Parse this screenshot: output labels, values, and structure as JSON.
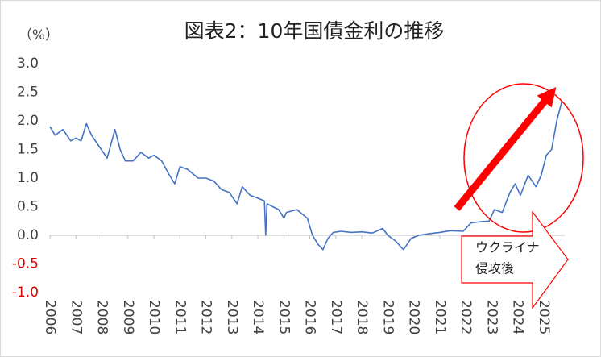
{
  "chart_data": {
    "type": "line",
    "title": "図表2：10年国債金利の推移",
    "y_unit": "（%）",
    "annotation": [
      "ウクライナ",
      "侵攻後"
    ],
    "xlim": [
      2006,
      2025.8
    ],
    "xticks": [
      2006,
      2007,
      2008,
      2009,
      2010,
      2011,
      2012,
      2013,
      2014,
      2015,
      2016,
      2017,
      2018,
      2019,
      2020,
      2021,
      2022,
      2023,
      2024,
      2025
    ],
    "ylim": [
      -1.0,
      3.0
    ],
    "yticks": [
      {
        "value": -1.0,
        "label": "-1.0"
      },
      {
        "value": -0.5,
        "label": "-0.5"
      },
      {
        "value": 0.0,
        "label": "0.0"
      },
      {
        "value": 0.5,
        "label": "0.5"
      },
      {
        "value": 1.0,
        "label": "1.0"
      },
      {
        "value": 1.5,
        "label": "1.5"
      },
      {
        "value": 2.0,
        "label": "2.0"
      },
      {
        "value": 2.5,
        "label": "2.5"
      },
      {
        "value": 3.0,
        "label": "3.0"
      }
    ],
    "negative_tick_color": "#e00000",
    "grid": false,
    "series": [
      {
        "color": "#4472c4",
        "x": [
          2006.0,
          2006.2,
          2006.5,
          2006.8,
          2007.0,
          2007.2,
          2007.4,
          2007.6,
          2007.9,
          2008.2,
          2008.5,
          2008.7,
          2008.9,
          2009.2,
          2009.5,
          2009.8,
          2010.0,
          2010.3,
          2010.6,
          2010.8,
          2011.0,
          2011.3,
          2011.7,
          2012.0,
          2012.3,
          2012.6,
          2012.9,
          2013.2,
          2013.4,
          2013.7,
          2014.0,
          2014.25,
          2014.3,
          2014.35,
          2014.8,
          2015.0,
          2015.1,
          2015.5,
          2015.9,
          2016.1,
          2016.3,
          2016.5,
          2016.7,
          2016.9,
          2017.2,
          2017.6,
          2018.0,
          2018.4,
          2018.8,
          2019.0,
          2019.3,
          2019.6,
          2019.9,
          2020.2,
          2020.6,
          2021.0,
          2021.4,
          2021.9,
          2022.2,
          2022.6,
          2022.9,
          2023.1,
          2023.4,
          2023.7,
          2023.9,
          2024.1,
          2024.4,
          2024.7,
          2024.9,
          2025.1,
          2025.3,
          2025.5,
          2025.7
        ],
        "values": [
          1.9,
          1.75,
          1.85,
          1.65,
          1.7,
          1.65,
          1.95,
          1.75,
          1.55,
          1.35,
          1.85,
          1.5,
          1.3,
          1.3,
          1.45,
          1.35,
          1.4,
          1.3,
          1.05,
          0.9,
          1.2,
          1.15,
          1.0,
          1.0,
          0.95,
          0.8,
          0.75,
          0.55,
          0.85,
          0.7,
          0.65,
          0.6,
          0.0,
          0.55,
          0.45,
          0.3,
          0.4,
          0.45,
          0.3,
          0.0,
          -0.15,
          -0.25,
          -0.05,
          0.05,
          0.07,
          0.05,
          0.06,
          0.04,
          0.12,
          0.0,
          -0.1,
          -0.25,
          -0.05,
          0.0,
          0.03,
          0.05,
          0.08,
          0.07,
          0.22,
          0.24,
          0.25,
          0.45,
          0.4,
          0.75,
          0.9,
          0.7,
          1.05,
          0.85,
          1.05,
          1.4,
          1.5,
          2.0,
          2.35
        ]
      }
    ]
  }
}
